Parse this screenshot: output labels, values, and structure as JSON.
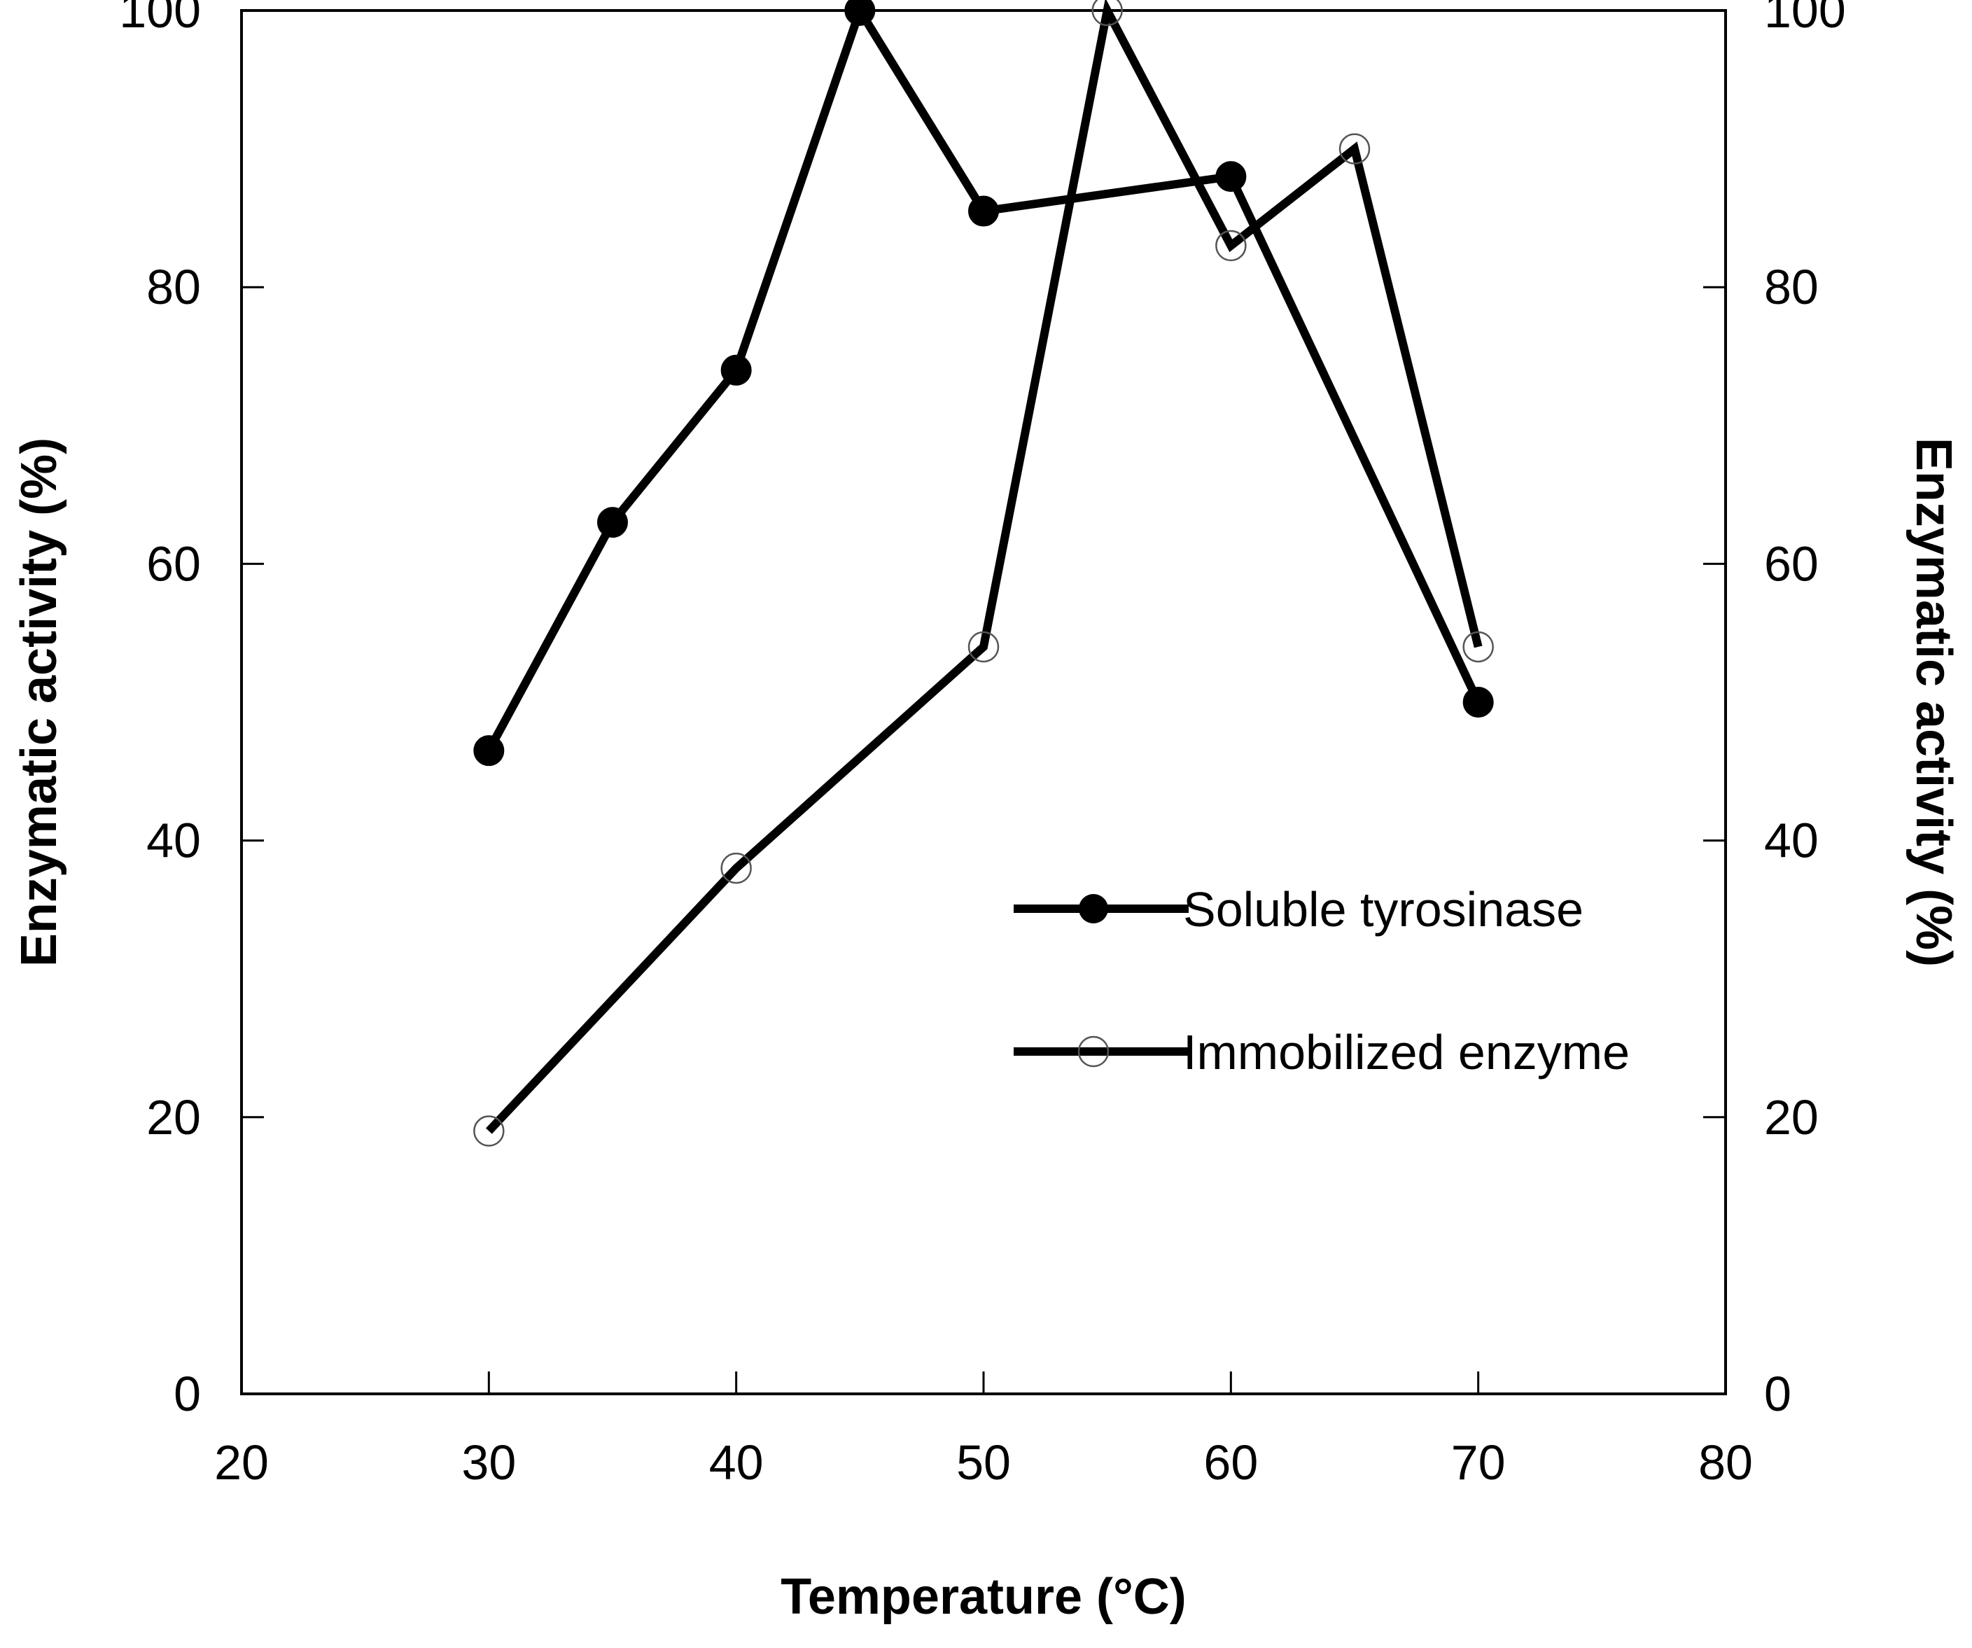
{
  "chart_data": {
    "type": "line",
    "title": "",
    "xlabel": "Temperature (°C)",
    "ylabel_left": "Enzymatic activity (%)",
    "ylabel_right": "Enzymatic activity (%)",
    "xlim": [
      20,
      80
    ],
    "ylim": [
      0,
      100
    ],
    "x_ticks": [
      "20",
      "30",
      "40",
      "50",
      "60",
      "70",
      "80"
    ],
    "x_tick_values": [
      20,
      30,
      40,
      50,
      60,
      70,
      80
    ],
    "y_ticks": [
      "0",
      "20",
      "40",
      "60",
      "80",
      "100"
    ],
    "y_tick_values": [
      0,
      20,
      40,
      60,
      80,
      100
    ],
    "grid": false,
    "legend_position": "center-right",
    "series": [
      {
        "name": "Soluble tyrosinase",
        "marker": "filled-circle",
        "color": "#000000",
        "x": [
          30,
          35,
          40,
          45,
          50,
          60,
          70
        ],
        "y": [
          46.5,
          63,
          74,
          100,
          85.5,
          88,
          50
        ]
      },
      {
        "name": "Immobilized enzyme",
        "marker": "open-circle",
        "color": "#000000",
        "x": [
          30,
          40,
          50,
          55,
          60,
          65,
          70
        ],
        "y": [
          19,
          38,
          54,
          100,
          83,
          90,
          54
        ]
      }
    ]
  }
}
